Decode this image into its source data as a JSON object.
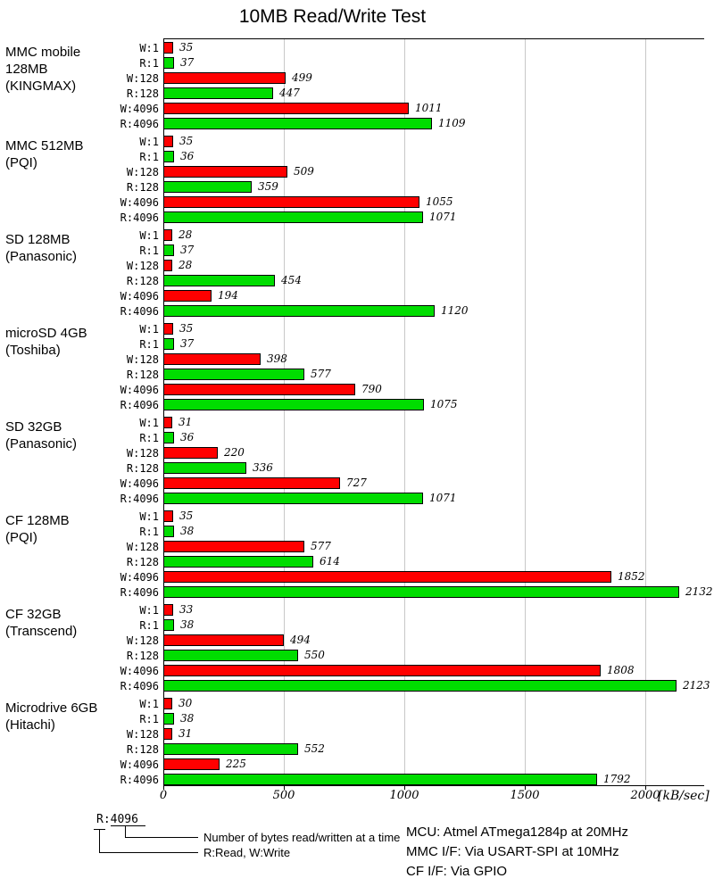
{
  "title": "10MB Read/Write Test",
  "chart_data": {
    "type": "bar",
    "orientation": "horizontal",
    "title": "10MB Read/Write Test",
    "xlabel": "[kB/sec]",
    "x_ticks": [
      "0",
      "500",
      "1000",
      "1500",
      "2000"
    ],
    "xlim": [
      0,
      2240
    ],
    "grid": "vertical gridlines every 500",
    "legend_position": "bottom-left",
    "bar_labels": [
      "W:1",
      "R:1",
      "W:128",
      "R:128",
      "W:4096",
      "R:4096"
    ],
    "colors": {
      "write": "#ff0000",
      "read": "#00dd00"
    },
    "groups": [
      {
        "device_lines": [
          "MMC mobile",
          "128MB",
          "(KINGMAX)"
        ],
        "values": [
          35,
          37,
          499,
          447,
          1011,
          1109
        ]
      },
      {
        "device_lines": [
          "MMC 512MB",
          "(PQI)"
        ],
        "values": [
          35,
          36,
          509,
          359,
          1055,
          1071
        ]
      },
      {
        "device_lines": [
          "SD 128MB",
          "(Panasonic)"
        ],
        "values": [
          28,
          37,
          28,
          454,
          194,
          1120
        ]
      },
      {
        "device_lines": [
          "microSD 4GB",
          "(Toshiba)"
        ],
        "values": [
          35,
          37,
          398,
          577,
          790,
          1075
        ]
      },
      {
        "device_lines": [
          "SD 32GB",
          "(Panasonic)"
        ],
        "values": [
          31,
          36,
          220,
          336,
          727,
          1071
        ]
      },
      {
        "device_lines": [
          "CF 128MB",
          "(PQI)"
        ],
        "values": [
          35,
          38,
          577,
          614,
          1852,
          2132
        ]
      },
      {
        "device_lines": [
          "CF 32GB",
          "(Transcend)"
        ],
        "values": [
          33,
          38,
          494,
          550,
          1808,
          2123
        ]
      },
      {
        "device_lines": [
          "Microdrive 6GB",
          "(Hitachi)"
        ],
        "values": [
          30,
          38,
          31,
          552,
          225,
          1792
        ]
      }
    ]
  },
  "legend": {
    "sample": "R:4096",
    "caption_bytes": "Number of bytes read/written at a time",
    "caption_rw": "R:Read, W:Write"
  },
  "footer": {
    "lines": [
      "MCU: Atmel ATmega1284p at 20MHz",
      "MMC I/F: Via USART-SPI at 10MHz",
      "CF I/F: Via GPIO"
    ]
  }
}
